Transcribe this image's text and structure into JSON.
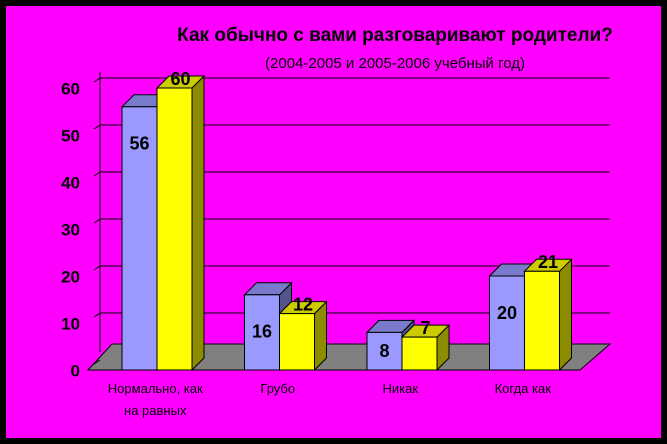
{
  "chart_data": {
    "type": "bar3d",
    "title": "Как обычно с вами разговаривают родители?",
    "subtitle": "(2004-2005 и 2005-2006 учебный год)",
    "categories": [
      "Нормально, как на равных",
      "Грубо",
      "Никак",
      "Когда как"
    ],
    "series": [
      {
        "color": "#9999ff",
        "values": [
          56,
          16,
          8,
          20
        ]
      },
      {
        "color": "#ffff00",
        "values": [
          60,
          12,
          7,
          21
        ]
      }
    ],
    "ylim": [
      0,
      60
    ],
    "yticks": [
      0,
      10,
      20,
      30,
      40,
      50,
      60
    ],
    "grid": true
  }
}
